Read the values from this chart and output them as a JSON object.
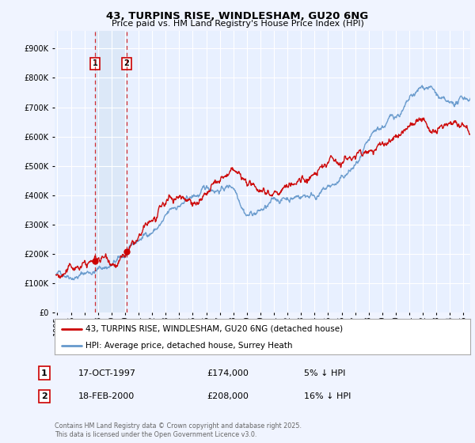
{
  "title1": "43, TURPINS RISE, WINDLESHAM, GU20 6NG",
  "title2": "Price paid vs. HM Land Registry's House Price Index (HPI)",
  "legend_line1": "43, TURPINS RISE, WINDLESHAM, GU20 6NG (detached house)",
  "legend_line2": "HPI: Average price, detached house, Surrey Heath",
  "transaction1_label": "1",
  "transaction1_date": "17-OCT-1997",
  "transaction1_price": "£174,000",
  "transaction1_hpi": "5% ↓ HPI",
  "transaction1_year": 1997.8,
  "transaction1_price_val": 174000,
  "transaction2_label": "2",
  "transaction2_date": "18-FEB-2000",
  "transaction2_price": "£208,000",
  "transaction2_hpi": "16% ↓ HPI",
  "transaction2_year": 2000.12,
  "transaction2_price_val": 208000,
  "yticks": [
    0,
    100000,
    200000,
    300000,
    400000,
    500000,
    600000,
    700000,
    800000,
    900000
  ],
  "ylim": [
    0,
    960000
  ],
  "xlim_start": 1994.8,
  "xlim_end": 2025.5,
  "red_color": "#cc0000",
  "blue_color": "#6699cc",
  "background_color": "#f0f4ff",
  "plot_bg": "#e8f0ff",
  "shade_color": "#dce8f8",
  "footnote": "Contains HM Land Registry data © Crown copyright and database right 2025.\nThis data is licensed under the Open Government Licence v3.0."
}
